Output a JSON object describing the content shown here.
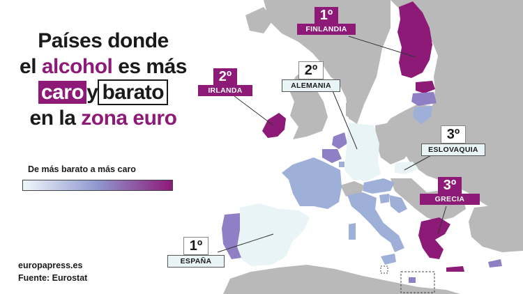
{
  "title": {
    "line1": "Países donde",
    "line2_prefix": "el ",
    "line2_highlight": "alcohol",
    "line2_suffix": " es más",
    "line3_caro": "caro",
    "line3_y": "y",
    "line3_barato": "barato",
    "line4_prefix": "en la ",
    "line4_highlight": "zona euro"
  },
  "legend": {
    "title": "De más barato a más caro",
    "color_start": "#eef7fa",
    "color_mid": "#8f97cf",
    "color_end": "#8e1a78"
  },
  "labels": {
    "finlandia": {
      "rank": "1º",
      "name": "FINLANDIA"
    },
    "irlanda": {
      "rank": "2º",
      "name": "IRLANDA"
    },
    "alemania": {
      "rank": "2º",
      "name": "ALEMANIA"
    },
    "eslovaquia": {
      "rank": "3º",
      "name": "ESLOVAQUIA"
    },
    "grecia": {
      "rank": "3º",
      "name": "GRECIA"
    },
    "espana": {
      "rank": "1º",
      "name": "ESPAÑA"
    }
  },
  "source": {
    "brand": "europapress.es",
    "line": "Fuente: Eurostat"
  },
  "colors": {
    "non_euro": "#b9b9b9",
    "cheap": "#e8f4f6",
    "mid": "#9fb0d8",
    "upper_mid": "#8f7fc4",
    "expensive": "#8e1a78",
    "water": "#ffffff"
  }
}
